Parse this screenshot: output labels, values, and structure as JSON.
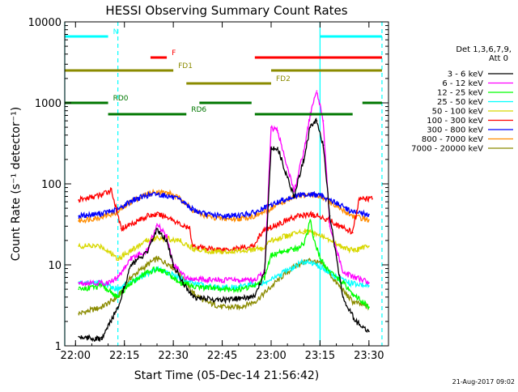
{
  "chart_data": {
    "type": "line",
    "title": "HESSI Observing Summary Count Rates",
    "xlabel": "Start Time (05-Dec-14 21:56:42)",
    "ylabel": "Count Rate (s⁻¹ detector⁻¹)",
    "y_scale": "log",
    "xlim": [
      "21:56:42",
      "23:36:00"
    ],
    "ylim": [
      1,
      10000
    ],
    "x_ticks": [
      "22:00",
      "22:15",
      "22:30",
      "22:45",
      "23:00",
      "23:15",
      "23:30"
    ],
    "y_ticks": [
      "1",
      "10",
      "100",
      "1000",
      "10000"
    ],
    "footer_date": "21-Aug-2017 09:02",
    "legend_header": [
      "Det 1,3,6,7,9,",
      "Att 0"
    ],
    "legend_position": "right",
    "series": [
      {
        "name": "3 - 6 keV",
        "color": "#000000",
        "x": [
          "22:01",
          "22:08",
          "22:13",
          "22:17",
          "22:22",
          "22:25",
          "22:28",
          "22:30",
          "22:33",
          "22:36",
          "22:40",
          "22:45",
          "22:50",
          "22:55",
          "22:58",
          "23:00",
          "23:02",
          "23:05",
          "23:07",
          "23:10",
          "23:12",
          "23:14",
          "23:16",
          "23:18",
          "23:22",
          "23:26",
          "23:30"
        ],
        "values": [
          1.3,
          1.2,
          3,
          10,
          14,
          28,
          20,
          10,
          6,
          4,
          3.8,
          3.7,
          3.8,
          4,
          8,
          270,
          280,
          120,
          70,
          200,
          500,
          600,
          300,
          40,
          4,
          2,
          1.5
        ]
      },
      {
        "name": "6 - 12 keV",
        "color": "#ff00ff",
        "x": [
          "22:01",
          "22:10",
          "22:13",
          "22:17",
          "22:22",
          "22:25",
          "22:28",
          "22:30",
          "22:34",
          "22:40",
          "22:45",
          "22:50",
          "22:55",
          "22:58",
          "23:00",
          "23:02",
          "23:05",
          "23:07",
          "23:10",
          "23:12",
          "23:14",
          "23:16",
          "23:18",
          "23:22",
          "23:30"
        ],
        "values": [
          6,
          6,
          7,
          12,
          15,
          32,
          22,
          10,
          7,
          6.5,
          6.5,
          6.5,
          6.5,
          8,
          500,
          450,
          160,
          80,
          250,
          700,
          1400,
          600,
          30,
          8,
          6
        ]
      },
      {
        "name": "12 - 25 keV",
        "color": "#00ff00",
        "x": [
          "22:01",
          "22:08",
          "22:13",
          "22:17",
          "22:22",
          "22:25",
          "22:28",
          "22:32",
          "22:36",
          "22:40",
          "22:45",
          "22:50",
          "22:55",
          "22:58",
          "23:00",
          "23:02",
          "23:05",
          "23:08",
          "23:10",
          "23:12",
          "23:13",
          "23:15",
          "23:18",
          "23:22",
          "23:26",
          "23:30"
        ],
        "values": [
          5,
          5.5,
          4,
          6,
          8,
          9,
          8,
          6,
          5.5,
          5.2,
          5,
          5,
          5.5,
          7,
          13,
          14,
          15,
          16,
          18,
          35,
          22,
          12,
          8,
          6,
          4,
          3
        ]
      },
      {
        "name": "25 - 50 keV",
        "color": "#00ffff",
        "x": [
          "22:01",
          "22:08",
          "22:13",
          "22:20",
          "22:25",
          "22:28",
          "22:32",
          "22:36",
          "22:40",
          "22:45",
          "22:50",
          "22:55",
          "22:58",
          "23:00",
          "23:05",
          "23:10",
          "23:13",
          "23:16",
          "23:20",
          "23:25",
          "23:30"
        ],
        "values": [
          6,
          6,
          5,
          7,
          9,
          8,
          7,
          6,
          5.5,
          5.2,
          5.3,
          5.8,
          6,
          6.5,
          8.5,
          11,
          10.5,
          9,
          7,
          5.8,
          5.5
        ]
      },
      {
        "name": "50 - 100 keV",
        "color": "#d8d800",
        "x": [
          "22:01",
          "22:08",
          "22:13",
          "22:17",
          "22:22",
          "22:25",
          "22:28",
          "22:32",
          "22:36",
          "22:40",
          "22:45",
          "22:50",
          "22:55",
          "22:58",
          "23:00",
          "23:05",
          "23:10",
          "23:13",
          "23:16",
          "23:20",
          "23:25",
          "23:30"
        ],
        "values": [
          17,
          17,
          12,
          15,
          20,
          22,
          21,
          20,
          16,
          15,
          14.5,
          15,
          15.5,
          16,
          20,
          23,
          26,
          25,
          22,
          18,
          15,
          17
        ]
      },
      {
        "name": "100 - 300 keV",
        "color": "#ff0000",
        "x": [
          "22:01",
          "22:08",
          "22:11",
          "22:14",
          "22:19",
          "22:22",
          "22:25",
          "22:29",
          "22:33",
          "22:35",
          "22:36",
          "22:40",
          "22:45",
          "22:50",
          "22:55",
          "22:56",
          "22:58",
          "23:03",
          "23:08",
          "23:12",
          "23:17",
          "23:21",
          "23:25",
          "23:27",
          "23:31"
        ],
        "values": [
          63,
          73,
          85,
          28,
          35,
          40,
          42,
          38,
          30,
          28,
          17,
          16,
          15.5,
          16,
          17,
          22,
          27,
          33,
          40,
          42,
          37,
          30,
          25,
          65,
          65
        ]
      },
      {
        "name": "300 - 800 keV",
        "color": "#0000ff",
        "x": [
          "22:01",
          "22:08",
          "22:13",
          "22:17",
          "22:22",
          "22:25",
          "22:29",
          "22:33",
          "22:36",
          "22:40",
          "22:45",
          "22:50",
          "22:55",
          "22:58",
          "23:03",
          "23:08",
          "23:12",
          "23:16",
          "23:20",
          "23:25",
          "23:30"
        ],
        "values": [
          40,
          43,
          48,
          62,
          72,
          75,
          70,
          60,
          48,
          42,
          40,
          41,
          44,
          50,
          62,
          72,
          75,
          70,
          58,
          45,
          42
        ]
      },
      {
        "name": "800 - 7000 keV",
        "color": "#ff8c00",
        "x": [
          "22:01",
          "22:08",
          "22:13",
          "22:17",
          "22:22",
          "22:25",
          "22:29",
          "22:33",
          "22:36",
          "22:40",
          "22:45",
          "22:50",
          "22:55",
          "22:58",
          "23:03",
          "23:08",
          "23:12",
          "23:16",
          "23:20",
          "23:25",
          "23:30"
        ],
        "values": [
          35,
          39,
          45,
          60,
          75,
          80,
          76,
          62,
          47,
          40,
          37,
          37,
          40,
          45,
          58,
          70,
          74,
          68,
          52,
          40,
          36
        ]
      },
      {
        "name": "7000 - 20000 keV",
        "color": "#8b8b00",
        "x": [
          "22:01",
          "22:08",
          "22:13",
          "22:17",
          "22:22",
          "22:25",
          "22:29",
          "22:33",
          "22:36",
          "22:40",
          "22:45",
          "22:50",
          "22:55",
          "22:58",
          "23:03",
          "23:08",
          "23:12",
          "23:16",
          "23:20",
          "23:25",
          "23:30"
        ],
        "values": [
          2.5,
          3,
          4,
          7,
          10,
          12,
          10,
          7,
          4.5,
          3.5,
          3,
          3,
          3.5,
          4.5,
          7,
          10,
          11.5,
          10,
          6,
          3.5,
          3
        ]
      }
    ],
    "state_bars": [
      {
        "label": "N",
        "color": "#00ffff",
        "level": 0.955,
        "segments": [
          [
            "21:56:42",
            "22:10"
          ],
          [
            "23:15",
            "23:34"
          ]
        ]
      },
      {
        "label": "F",
        "color": "#ff0000",
        "level": 0.89,
        "segments": [
          [
            "22:23",
            "22:28"
          ],
          [
            "22:55",
            "23:34"
          ]
        ]
      },
      {
        "label": "FD1",
        "color": "#8b8b00",
        "level": 0.85,
        "segments": [
          [
            "21:56:42",
            "22:30"
          ],
          [
            "23:00",
            "23:34"
          ]
        ]
      },
      {
        "label": "FD2",
        "color": "#8b8b00",
        "level": 0.81,
        "segments": [
          [
            "22:34",
            "23:00"
          ]
        ]
      },
      {
        "label": "RD0",
        "color": "#007700",
        "level": 0.75,
        "segments": [
          [
            "21:56:42",
            "22:10"
          ],
          [
            "22:38",
            "22:54"
          ],
          [
            "23:28",
            "23:34"
          ]
        ]
      },
      {
        "label": "RD6",
        "color": "#007700",
        "level": 0.715,
        "segments": [
          [
            "22:10",
            "22:34"
          ],
          [
            "22:55",
            "23:25"
          ]
        ]
      }
    ],
    "vlines": [
      {
        "time": "21:56:42",
        "color": "#00ffff",
        "style": "solid"
      },
      {
        "time": "22:13",
        "color": "#00ffff",
        "style": "dashed"
      },
      {
        "time": "23:15",
        "color": "#00ffff",
        "style": "solid"
      },
      {
        "time": "23:34",
        "color": "#00ffff",
        "style": "dashed"
      }
    ]
  }
}
